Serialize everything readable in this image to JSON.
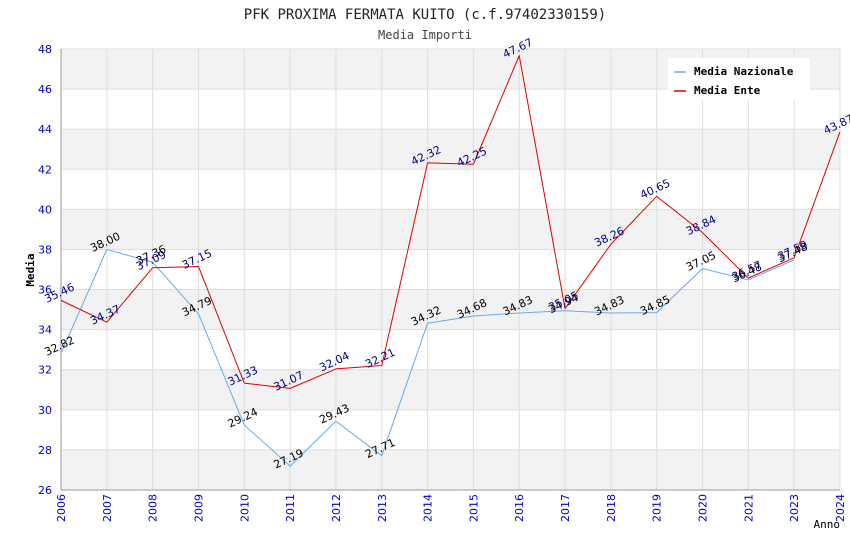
{
  "chart_data": {
    "type": "line",
    "title": "PFK PROXIMA FERMATA KUITO (c.f.97402330159)",
    "subtitle": "Media Importi",
    "xlabel": "Anno",
    "ylabel": "Media",
    "ylim": [
      26,
      48
    ],
    "yticks": [
      26,
      28,
      30,
      32,
      34,
      36,
      38,
      40,
      42,
      44,
      46,
      48
    ],
    "grid": true,
    "legend_position": "top-right",
    "categories": [
      "2006",
      "2007",
      "2008",
      "2009",
      "2010",
      "2011",
      "2012",
      "2013",
      "2014",
      "2015",
      "2016",
      "2017",
      "2018",
      "2019",
      "2020",
      "2021",
      "2023",
      "2024"
    ],
    "series": [
      {
        "name": "Media Nazionale",
        "color": "#66aaee",
        "label_color": "#000000",
        "values": [
          32.82,
          38.0,
          37.36,
          34.79,
          29.24,
          27.19,
          29.43,
          27.71,
          34.32,
          34.68,
          34.83,
          34.94,
          34.83,
          34.85,
          37.05,
          36.48,
          37.48,
          null
        ],
        "labels": [
          "32.82",
          "38.00",
          "37.36",
          "34.79",
          "29.24",
          "27.19",
          "29.43",
          "27.71",
          "34.32",
          "34.68",
          "34.83",
          "34.94",
          "34.83",
          "34.85",
          "37.05",
          "36.48",
          "37.48",
          ""
        ]
      },
      {
        "name": "Media Ente",
        "color": "#dd0000",
        "label_color": "#000080",
        "values": [
          35.46,
          34.37,
          37.09,
          37.15,
          31.33,
          31.07,
          32.04,
          32.21,
          42.32,
          42.25,
          47.67,
          35.05,
          38.26,
          40.65,
          38.84,
          36.57,
          37.59,
          43.87
        ],
        "labels": [
          "35.46",
          "34.37",
          "37.09",
          "37.15",
          "31.33",
          "31.07",
          "32.04",
          "32.21",
          "42.32",
          "42.25",
          "47.67",
          "35.05",
          "38.26",
          "40.65",
          "38.84",
          "36.57",
          "37.59",
          "43.87"
        ]
      }
    ]
  },
  "colors": {
    "band": "#f2f2f2",
    "grid": "#dddddd",
    "axis": "#999999",
    "tick_text": "#0000cc",
    "title_text": "#333333"
  }
}
